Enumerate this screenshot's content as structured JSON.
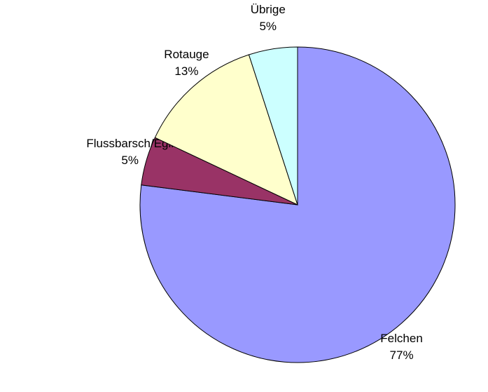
{
  "chart_data": {
    "type": "pie",
    "categories": [
      "Felchen",
      "Flussbarsch/Egli",
      "Rotauge",
      "Übrige"
    ],
    "values": [
      77,
      5,
      13,
      5
    ],
    "value_labels": [
      "77%",
      "5%",
      "13%",
      "5%"
    ],
    "colors": [
      "#9999ff",
      "#993366",
      "#ffffcc",
      "#ccffff"
    ]
  }
}
